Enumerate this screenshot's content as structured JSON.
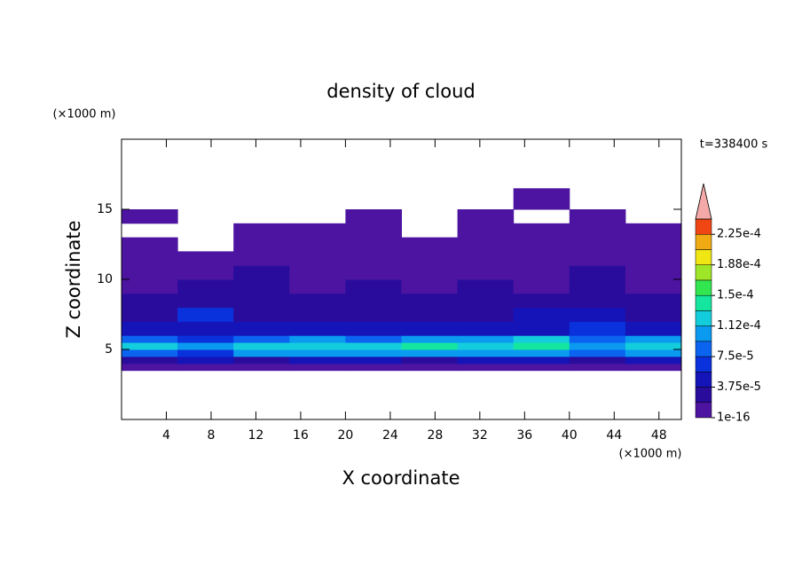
{
  "chart_data": {
    "type": "contour",
    "title": "density of cloud",
    "xlabel": "X coordinate",
    "ylabel": "Z coordinate",
    "xunit": "(×1000 m)",
    "yunit": "(×1000 m)",
    "annotation": "t=338400 s",
    "xlim": [
      0,
      50
    ],
    "ylim": [
      0,
      20
    ],
    "xticks": [
      4,
      8,
      12,
      16,
      20,
      24,
      28,
      32,
      36,
      40,
      44,
      48
    ],
    "yticks": [
      5,
      10,
      15
    ],
    "x": [
      0,
      5,
      10,
      15,
      20,
      25,
      30,
      35,
      40,
      45,
      50
    ],
    "y": [
      3.5,
      4,
      4.5,
      5,
      5.5,
      6,
      7,
      8,
      9,
      10,
      11,
      12,
      13,
      14,
      15,
      16.5
    ],
    "z": [
      [
        1e-05,
        1e-05,
        1e-05,
        1e-05,
        1e-05,
        1e-05,
        1e-05,
        1e-05,
        1e-05,
        1e-05
      ],
      [
        3e-05,
        4e-05,
        3e-05,
        4e-05,
        4e-05,
        3e-05,
        4e-05,
        4e-05,
        3e-05,
        4e-05
      ],
      [
        8e-05,
        6e-05,
        0.0001,
        0.00011,
        0.0001,
        0.0001,
        0.00011,
        0.00011,
        8e-05,
        0.0001
      ],
      [
        0.00012,
        0.0001,
        0.00012,
        0.00013,
        0.00012,
        0.00014,
        0.00013,
        0.00014,
        0.0001,
        0.00012
      ],
      [
        8e-05,
        6e-05,
        8e-05,
        0.0001,
        8e-05,
        0.0001,
        0.0001,
        0.00012,
        8e-05,
        0.0001
      ],
      [
        4e-05,
        5e-05,
        4e-05,
        4e-05,
        4e-05,
        4e-05,
        4e-05,
        5e-05,
        6e-05,
        5e-05
      ],
      [
        3e-05,
        6e-05,
        3e-05,
        3e-05,
        3e-05,
        3e-05,
        3e-05,
        4e-05,
        5e-05,
        3e-05
      ],
      [
        2e-05,
        3e-05,
        2e-05,
        2e-05,
        3e-05,
        2e-05,
        2e-05,
        3e-05,
        2e-05,
        2e-05
      ],
      [
        1e-05,
        2e-05,
        2e-05,
        1e-05,
        2e-05,
        1e-05,
        2e-05,
        1e-05,
        2e-05,
        1e-05
      ],
      [
        1e-05,
        1e-05,
        2e-05,
        1e-05,
        1e-05,
        1e-05,
        1e-05,
        1e-05,
        2e-05,
        1e-05
      ],
      [
        1e-05,
        1e-05,
        1e-05,
        1e-05,
        1e-05,
        1e-05,
        1e-05,
        1e-05,
        1e-05,
        1e-05
      ],
      [
        1e-05,
        null,
        1e-05,
        1e-05,
        1e-05,
        1e-05,
        1e-05,
        1e-05,
        1e-05,
        1e-05
      ],
      [
        null,
        null,
        1e-05,
        1e-05,
        1e-05,
        null,
        1e-05,
        1e-05,
        1e-05,
        1e-05
      ],
      [
        1e-05,
        null,
        null,
        null,
        1e-05,
        null,
        1e-05,
        null,
        1e-05,
        null
      ],
      [
        null,
        null,
        null,
        null,
        null,
        null,
        null,
        1e-05,
        null,
        null
      ]
    ],
    "levels": [
      1e-16,
      1.875e-05,
      3.75e-05,
      5.625e-05,
      7.5e-05,
      9.375e-05,
      0.0001125,
      0.00013125,
      0.00015,
      0.00016875,
      0.0001875,
      0.00020625,
      0.000225,
      0.00024375
    ],
    "colors": [
      "#4c14a0",
      "#2a0c9c",
      "#1414b8",
      "#0a32dc",
      "#0a64f0",
      "#0a9af0",
      "#14cddc",
      "#14e6a0",
      "#32e650",
      "#a0e628",
      "#f0e614",
      "#f0aa14",
      "#f04614"
    ],
    "extend_color": "#f4a8a8",
    "cbar_ticks": [
      {
        "value": 1e-16,
        "label": "1e-16"
      },
      {
        "value": 3.75e-05,
        "label": "3.75e-5"
      },
      {
        "value": 7.5e-05,
        "label": "7.5e-5"
      },
      {
        "value": 0.0001125,
        "label": "1.12e-4"
      },
      {
        "value": 0.00015,
        "label": "1.5e-4"
      },
      {
        "value": 0.0001875,
        "label": "1.88e-4"
      },
      {
        "value": 0.000225,
        "label": "2.25e-4"
      }
    ]
  }
}
